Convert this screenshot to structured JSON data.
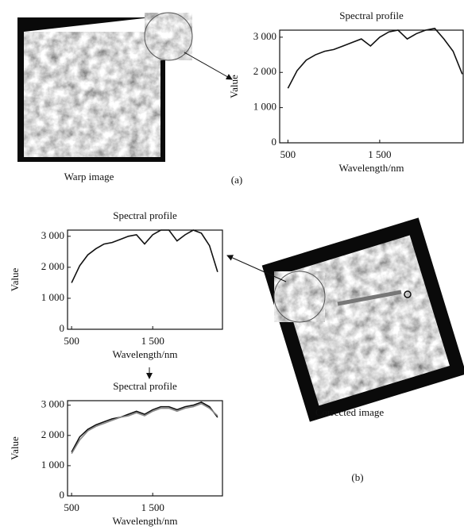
{
  "chart_data": [
    {
      "type": "line",
      "title": "Spectral profile",
      "xlabel": "Wavelength/nm",
      "ylabel": "Value",
      "x": [
        500,
        600,
        700,
        800,
        900,
        1000,
        1100,
        1200,
        1300,
        1400,
        1500,
        1600,
        1700,
        1800,
        1900,
        2000,
        2100,
        2200,
        2300,
        2400
      ],
      "series": [
        {
          "color": "#111111",
          "values": [
            1550,
            2050,
            2350,
            2500,
            2600,
            2650,
            2750,
            2850,
            2950,
            2750,
            3000,
            3150,
            3200,
            2950,
            3100,
            3200,
            3250,
            2950,
            2600,
            1950
          ]
        }
      ],
      "xlim": [
        410,
        2410
      ],
      "ylim": [
        0,
        3200
      ],
      "xticks": [
        500,
        {
          "value": 1500,
          "label": "1 500"
        }
      ],
      "yticks": [
        0,
        {
          "value": 1000,
          "label": "1 000"
        },
        {
          "value": 2000,
          "label": "2 000"
        },
        {
          "value": 3000,
          "label": "3 000"
        }
      ]
    },
    {
      "type": "line",
      "title": "Spectral profile",
      "xlabel": "Wavelength/nm",
      "ylabel": "Value",
      "x": [
        500,
        600,
        700,
        800,
        900,
        1000,
        1100,
        1200,
        1300,
        1400,
        1500,
        1600,
        1700,
        1800,
        1900,
        2000,
        2100,
        2200,
        2300
      ],
      "series": [
        {
          "color": "#111111",
          "values": [
            1500,
            2050,
            2400,
            2600,
            2750,
            2800,
            2900,
            3000,
            3050,
            2750,
            3050,
            3200,
            3200,
            2850,
            3050,
            3200,
            3100,
            2700,
            1850
          ]
        }
      ],
      "xlim": [
        450,
        2360
      ],
      "ylim": [
        0,
        3200
      ],
      "xticks": [
        500,
        {
          "value": 1500,
          "label": "1 500"
        }
      ],
      "yticks": [
        0,
        {
          "value": 1000,
          "label": "1 000"
        },
        {
          "value": 2000,
          "label": "2 000"
        },
        {
          "value": 3000,
          "label": "3 000"
        }
      ]
    },
    {
      "type": "line",
      "title": "Spectral profile",
      "xlabel": "Wavelength/nm",
      "ylabel": "Value",
      "x": [
        500,
        600,
        700,
        800,
        900,
        1000,
        1100,
        1200,
        1300,
        1400,
        1500,
        1600,
        1700,
        1800,
        1900,
        2000,
        2100,
        2200,
        2300
      ],
      "series": [
        {
          "color": "#111111",
          "values": [
            1450,
            1950,
            2200,
            2350,
            2450,
            2550,
            2600,
            2700,
            2800,
            2700,
            2850,
            2950,
            2950,
            2850,
            2950,
            3000,
            3100,
            2950,
            2600
          ]
        },
        {
          "color": "#888888",
          "values": [
            1400,
            1850,
            2150,
            2300,
            2400,
            2500,
            2600,
            2650,
            2750,
            2650,
            2800,
            2900,
            2900,
            2800,
            2900,
            2950,
            3050,
            2900,
            2650
          ]
        }
      ],
      "xlim": [
        450,
        2360
      ],
      "ylim": [
        0,
        3150
      ],
      "xticks": [
        500,
        {
          "value": 1500,
          "label": "1 500"
        }
      ],
      "yticks": [
        0,
        {
          "value": 1000,
          "label": "1 000"
        },
        {
          "value": 2000,
          "label": "2 000"
        },
        {
          "value": 3000,
          "label": "3 000"
        }
      ]
    }
  ],
  "figure": {
    "warp_caption": "Warp image",
    "part_a": "(a)",
    "corrected_caption": "Corrected image",
    "part_b": "(b)"
  }
}
